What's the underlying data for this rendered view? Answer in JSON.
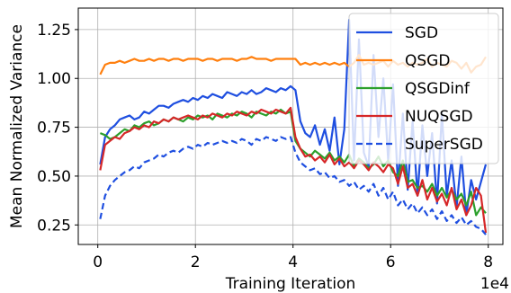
{
  "chart_data": {
    "type": "line",
    "title": "",
    "xlabel": "Training Iteration",
    "ylabel": "Mean Normalized Variance",
    "x_multiplier_label": "1e4",
    "xlim": [
      -0.4,
      8.3
    ],
    "ylim": [
      0.15,
      1.36
    ],
    "xticks": [
      0,
      2,
      4,
      6,
      8
    ],
    "xtick_labels": [
      "0",
      "2",
      "4",
      "6",
      "8"
    ],
    "yticks": [
      0.25,
      0.5,
      0.75,
      1.0,
      1.25
    ],
    "ytick_labels": [
      "0.25",
      "0.50",
      "0.75",
      "1.00",
      "1.25"
    ],
    "grid": true,
    "legend_position": "top-right",
    "x": [
      0.05,
      0.15,
      0.25,
      0.35,
      0.45,
      0.55,
      0.65,
      0.75,
      0.85,
      0.95,
      1.05,
      1.15,
      1.25,
      1.35,
      1.45,
      1.55,
      1.65,
      1.75,
      1.85,
      1.95,
      2.05,
      2.15,
      2.25,
      2.35,
      2.45,
      2.55,
      2.65,
      2.75,
      2.85,
      2.95,
      3.05,
      3.15,
      3.25,
      3.35,
      3.45,
      3.55,
      3.65,
      3.75,
      3.85,
      3.95,
      4.05,
      4.15,
      4.25,
      4.35,
      4.45,
      4.55,
      4.65,
      4.75,
      4.85,
      4.95,
      5.05,
      5.15,
      5.25,
      5.35,
      5.45,
      5.55,
      5.65,
      5.75,
      5.85,
      5.95,
      6.05,
      6.15,
      6.25,
      6.35,
      6.45,
      6.55,
      6.65,
      6.75,
      6.85,
      6.95,
      7.05,
      7.15,
      7.25,
      7.35,
      7.45,
      7.55,
      7.65,
      7.75,
      7.85,
      7.95
    ],
    "series": [
      {
        "name": "SGD",
        "color": "#1f4fe0",
        "dash": "solid",
        "values": [
          0.56,
          0.7,
          0.74,
          0.76,
          0.79,
          0.8,
          0.81,
          0.79,
          0.8,
          0.83,
          0.82,
          0.84,
          0.86,
          0.86,
          0.85,
          0.87,
          0.88,
          0.89,
          0.88,
          0.9,
          0.89,
          0.91,
          0.9,
          0.92,
          0.91,
          0.9,
          0.93,
          0.92,
          0.91,
          0.93,
          0.92,
          0.94,
          0.92,
          0.93,
          0.95,
          0.94,
          0.93,
          0.95,
          0.94,
          0.96,
          0.94,
          0.78,
          0.72,
          0.7,
          0.76,
          0.66,
          0.74,
          0.63,
          0.8,
          0.56,
          0.74,
          1.3,
          0.58,
          1.2,
          0.62,
          0.55,
          1.12,
          0.7,
          1.0,
          0.58,
          0.97,
          0.45,
          0.82,
          0.43,
          0.78,
          0.4,
          0.76,
          0.5,
          0.72,
          0.36,
          0.82,
          0.4,
          0.58,
          0.34,
          0.6,
          0.3,
          0.48,
          0.38,
          0.47,
          0.56
        ]
      },
      {
        "name": "QSGD",
        "color": "#ff7f0e",
        "dash": "solid",
        "values": [
          1.02,
          1.07,
          1.08,
          1.08,
          1.09,
          1.08,
          1.09,
          1.1,
          1.09,
          1.09,
          1.1,
          1.09,
          1.1,
          1.1,
          1.09,
          1.1,
          1.1,
          1.09,
          1.1,
          1.1,
          1.1,
          1.09,
          1.1,
          1.1,
          1.09,
          1.1,
          1.1,
          1.1,
          1.09,
          1.1,
          1.1,
          1.11,
          1.1,
          1.1,
          1.1,
          1.09,
          1.1,
          1.1,
          1.1,
          1.1,
          1.1,
          1.07,
          1.08,
          1.07,
          1.08,
          1.07,
          1.08,
          1.07,
          1.08,
          1.07,
          1.08,
          1.06,
          1.08,
          1.12,
          1.07,
          1.08,
          1.07,
          1.08,
          1.09,
          1.06,
          1.09,
          1.07,
          1.08,
          1.06,
          1.08,
          1.07,
          1.08,
          1.1,
          1.06,
          1.08,
          1.07,
          1.06,
          1.09,
          1.08,
          1.05,
          1.08,
          1.03,
          1.06,
          1.07,
          1.11
        ]
      },
      {
        "name": "QSGDinf",
        "color": "#2ca02c",
        "dash": "solid",
        "values": [
          0.72,
          0.71,
          0.69,
          0.7,
          0.72,
          0.74,
          0.73,
          0.76,
          0.75,
          0.77,
          0.78,
          0.76,
          0.77,
          0.79,
          0.78,
          0.8,
          0.79,
          0.78,
          0.8,
          0.79,
          0.81,
          0.8,
          0.81,
          0.79,
          0.82,
          0.81,
          0.8,
          0.82,
          0.81,
          0.83,
          0.82,
          0.8,
          0.83,
          0.82,
          0.81,
          0.83,
          0.82,
          0.84,
          0.82,
          0.83,
          0.68,
          0.64,
          0.62,
          0.6,
          0.63,
          0.61,
          0.59,
          0.62,
          0.58,
          0.6,
          0.57,
          0.61,
          0.55,
          0.59,
          0.57,
          0.54,
          0.56,
          0.6,
          0.55,
          0.58,
          0.52,
          0.5,
          0.58,
          0.47,
          0.48,
          0.44,
          0.45,
          0.42,
          0.46,
          0.4,
          0.44,
          0.39,
          0.43,
          0.38,
          0.41,
          0.35,
          0.42,
          0.3,
          0.34,
          0.31
        ]
      },
      {
        "name": "NUQSGD",
        "color": "#d62728",
        "dash": "solid",
        "values": [
          0.53,
          0.66,
          0.68,
          0.7,
          0.69,
          0.72,
          0.73,
          0.75,
          0.74,
          0.76,
          0.75,
          0.78,
          0.77,
          0.79,
          0.78,
          0.8,
          0.79,
          0.8,
          0.81,
          0.8,
          0.79,
          0.81,
          0.8,
          0.82,
          0.81,
          0.8,
          0.82,
          0.81,
          0.83,
          0.82,
          0.81,
          0.83,
          0.82,
          0.84,
          0.83,
          0.82,
          0.84,
          0.83,
          0.82,
          0.85,
          0.7,
          0.64,
          0.6,
          0.61,
          0.58,
          0.6,
          0.57,
          0.61,
          0.56,
          0.59,
          0.55,
          0.57,
          0.54,
          0.58,
          0.56,
          0.53,
          0.57,
          0.55,
          0.52,
          0.56,
          0.54,
          0.46,
          0.55,
          0.44,
          0.46,
          0.4,
          0.48,
          0.38,
          0.44,
          0.37,
          0.41,
          0.35,
          0.44,
          0.33,
          0.38,
          0.3,
          0.35,
          0.44,
          0.4,
          0.21
        ]
      },
      {
        "name": "SuperSGD",
        "color": "#1f4fe0",
        "dash": "dashed",
        "values": [
          0.28,
          0.4,
          0.45,
          0.48,
          0.5,
          0.52,
          0.53,
          0.55,
          0.54,
          0.57,
          0.58,
          0.59,
          0.61,
          0.6,
          0.62,
          0.63,
          0.62,
          0.64,
          0.65,
          0.64,
          0.66,
          0.65,
          0.67,
          0.66,
          0.67,
          0.68,
          0.67,
          0.68,
          0.67,
          0.69,
          0.68,
          0.66,
          0.69,
          0.68,
          0.7,
          0.69,
          0.68,
          0.7,
          0.69,
          0.7,
          0.62,
          0.57,
          0.55,
          0.53,
          0.54,
          0.51,
          0.52,
          0.49,
          0.5,
          0.47,
          0.48,
          0.45,
          0.47,
          0.43,
          0.45,
          0.42,
          0.46,
          0.4,
          0.44,
          0.38,
          0.42,
          0.35,
          0.38,
          0.33,
          0.36,
          0.31,
          0.34,
          0.3,
          0.33,
          0.28,
          0.32,
          0.27,
          0.3,
          0.26,
          0.29,
          0.25,
          0.27,
          0.24,
          0.23,
          0.2
        ]
      }
    ]
  }
}
